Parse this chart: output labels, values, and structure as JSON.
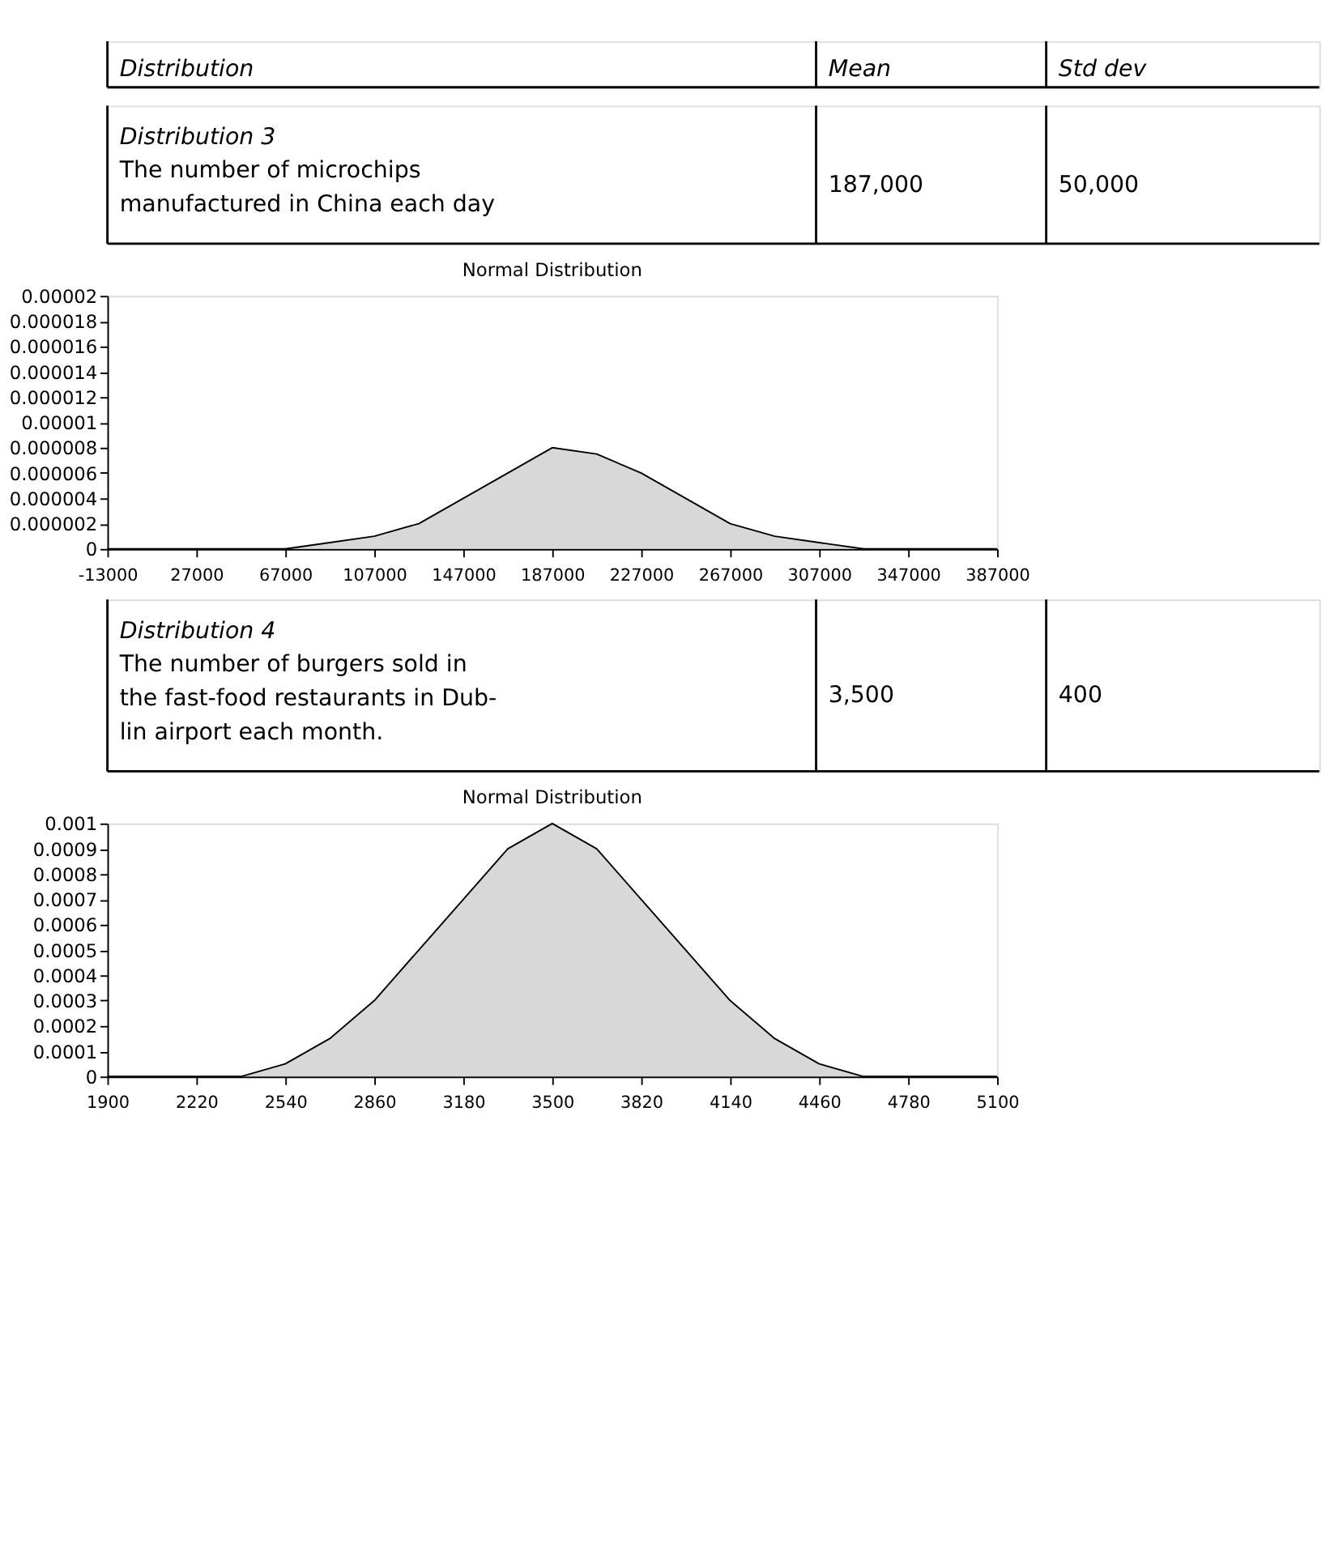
{
  "chart_data": [
    {
      "type": "other",
      "annotations": [
        "Distribution",
        "Mean",
        "Std dev"
      ]
    },
    {
      "type": "other",
      "annotations": [
        "Distribution 3",
        "The number of microchips",
        "manufactured in China each day",
        "187,000",
        "50,000"
      ]
    },
    {
      "type": "area",
      "title": "Normal Distribution",
      "x": [
        -13000,
        7000,
        27000,
        47000,
        67000,
        87000,
        107000,
        127000,
        147000,
        167000,
        187000,
        207000,
        227000,
        247000,
        267000,
        287000,
        307000,
        327000,
        347000,
        367000,
        387000
      ],
      "series": [
        {
          "color": "#c8c8c8",
          "values": [
            0,
            0,
            0,
            0,
            0,
            5e-07,
            1e-06,
            2e-06,
            4e-06,
            6e-06,
            8e-06,
            7.5e-06,
            6e-06,
            4e-06,
            2e-06,
            1e-06,
            5e-07,
            0,
            0,
            0,
            0
          ]
        }
      ],
      "xlim": [
        -13000,
        387000
      ],
      "xticks": [
        -13000,
        27000,
        67000,
        107000,
        147000,
        187000,
        227000,
        267000,
        307000,
        347000,
        387000
      ],
      "ylim": [
        0,
        2e-05
      ],
      "yticks": [
        0,
        {
          "value": 2e-06,
          "label": "0.000002"
        },
        {
          "value": 4e-06,
          "label": "0.000004"
        },
        {
          "value": 6e-06,
          "label": "0.000006"
        },
        {
          "value": 8e-06,
          "label": "0.000008"
        },
        {
          "value": 1e-05,
          "label": "0.00001"
        },
        {
          "value": 1.2e-05,
          "label": "0.000012"
        },
        {
          "value": 1.4e-05,
          "label": "0.000014"
        },
        {
          "value": 1.6e-05,
          "label": "0.000016"
        },
        {
          "value": 1.8e-05,
          "label": "0.000018"
        },
        {
          "value": 2e-05,
          "label": "0.00002"
        }
      ],
      "grid": false
    },
    {
      "type": "other",
      "annotations": [
        "Distribution 4",
        "The number of burgers sold in",
        "the fast-food restaurants in Dub-",
        "lin airport each month.",
        "3,500",
        "400"
      ]
    },
    {
      "type": "area",
      "title": "Normal Distribution",
      "x": [
        1900,
        2060,
        2220,
        2380,
        2540,
        2700,
        2860,
        3020,
        3180,
        3340,
        3500,
        3660,
        3820,
        3980,
        4140,
        4300,
        4460,
        4620,
        4780,
        4940,
        5100
      ],
      "series": [
        {
          "color": "#c8c8c8",
          "values": [
            0,
            0,
            0,
            0,
            5e-05,
            0.00015,
            0.0003,
            0.0005,
            0.0007,
            0.0009,
            0.001,
            0.0009,
            0.0007,
            0.0005,
            0.0003,
            0.00015,
            5e-05,
            0,
            0,
            0,
            0
          ]
        }
      ],
      "xlim": [
        1900,
        5100
      ],
      "xticks": [
        1900,
        2220,
        2540,
        2860,
        3180,
        3500,
        3820,
        4140,
        4460,
        4780,
        5100
      ],
      "ylim": [
        0,
        0.001
      ],
      "yticks": [
        0,
        0.0001,
        0.0002,
        0.0003,
        0.0004,
        0.0005,
        0.0006,
        0.0007,
        0.0008,
        0.0009,
        0.001
      ],
      "grid": false
    }
  ]
}
